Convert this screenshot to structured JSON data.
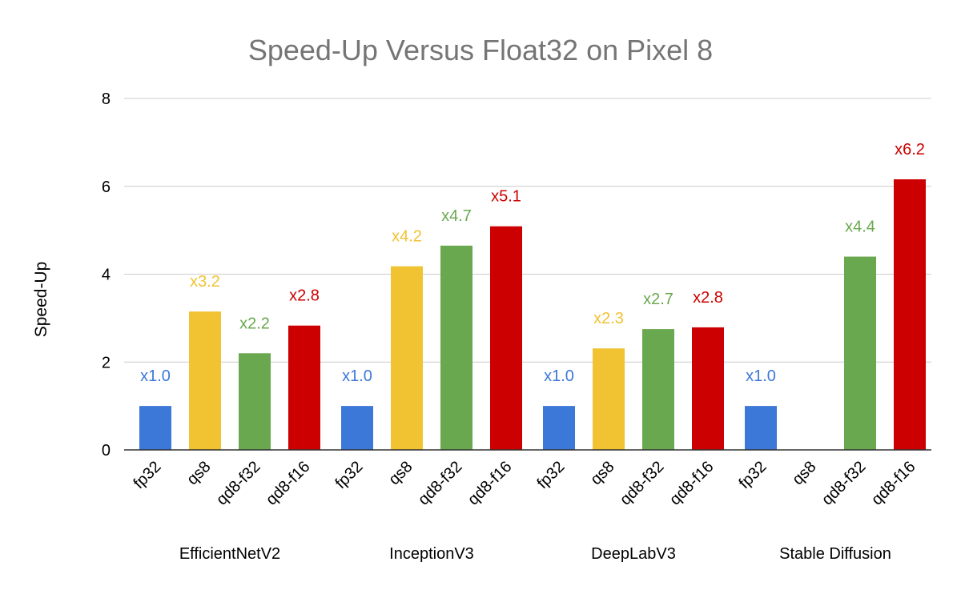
{
  "chart_data": {
    "type": "bar",
    "title": "Speed-Up Versus Float32 on Pixel 8",
    "xlabel": "",
    "ylabel": "Speed-Up",
    "ylim": [
      0,
      8
    ],
    "yticks": [
      "0",
      "2",
      "4",
      "6",
      "8"
    ],
    "grid": true,
    "legend": "none",
    "series_colors": {
      "fp32": "#3c78d8",
      "qs8": "#f1c232",
      "qd8-f32": "#6aa84f",
      "qd8-f16": "#cc0000"
    },
    "groups": [
      {
        "name": "EfficientNetV2",
        "bars": [
          {
            "category": "fp32",
            "value": 1.0,
            "label": "x1.0"
          },
          {
            "category": "qs8",
            "value": 3.15,
            "label": "x3.2"
          },
          {
            "category": "qd8-f32",
            "value": 2.2,
            "label": "x2.2"
          },
          {
            "category": "qd8-f16",
            "value": 2.83,
            "label": "x2.8"
          }
        ]
      },
      {
        "name": "InceptionV3",
        "bars": [
          {
            "category": "fp32",
            "value": 1.0,
            "label": "x1.0"
          },
          {
            "category": "qs8",
            "value": 4.18,
            "label": "x4.2"
          },
          {
            "category": "qd8-f32",
            "value": 4.65,
            "label": "x4.7"
          },
          {
            "category": "qd8-f16",
            "value": 5.09,
            "label": "x5.1"
          }
        ]
      },
      {
        "name": "DeepLabV3",
        "bars": [
          {
            "category": "fp32",
            "value": 1.0,
            "label": "x1.0"
          },
          {
            "category": "qs8",
            "value": 2.31,
            "label": "x2.3"
          },
          {
            "category": "qd8-f32",
            "value": 2.75,
            "label": "x2.7"
          },
          {
            "category": "qd8-f16",
            "value": 2.79,
            "label": "x2.8"
          }
        ]
      },
      {
        "name": "Stable Diffusion",
        "bars": [
          {
            "category": "fp32",
            "value": 1.0,
            "label": "x1.0"
          },
          {
            "category": "qs8",
            "value": null,
            "label": ""
          },
          {
            "category": "qd8-f32",
            "value": 4.4,
            "label": "x4.4"
          },
          {
            "category": "qd8-f16",
            "value": 6.16,
            "label": "x6.2"
          }
        ]
      }
    ]
  }
}
